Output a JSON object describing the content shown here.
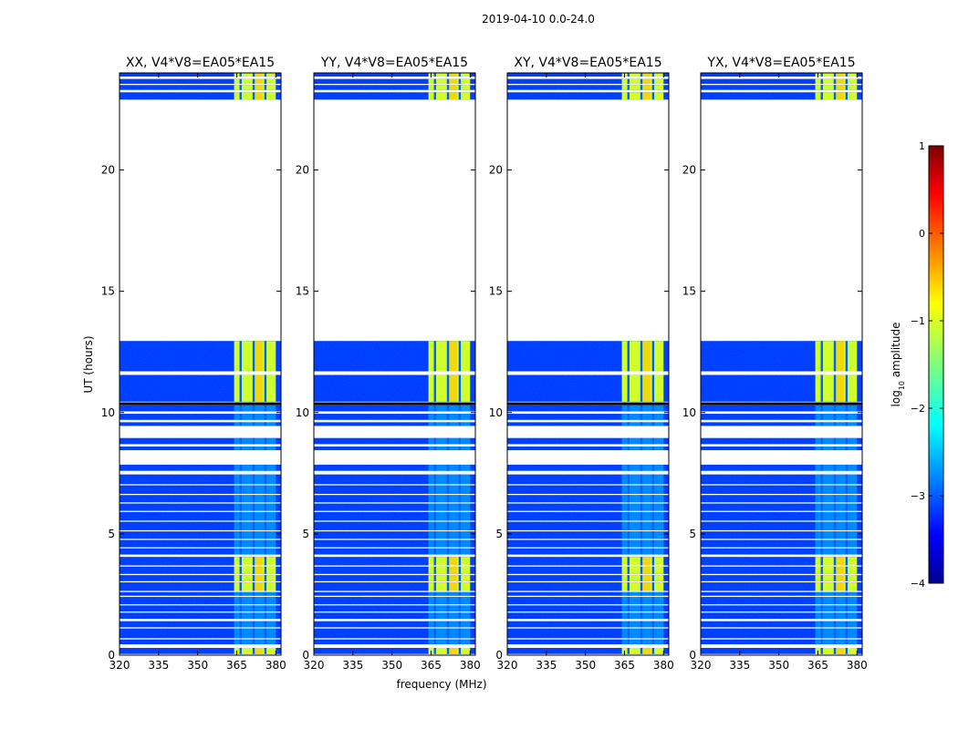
{
  "chart_data": {
    "type": "heatmap",
    "suptitle": "2019-04-10 0.0-24.0",
    "xlabel": "frequency (MHz)",
    "ylabel": "UT (hours)",
    "xlim": [
      320,
      382
    ],
    "ylim": [
      0,
      24
    ],
    "xticks": [
      320,
      335,
      350,
      365,
      380
    ],
    "yticks": [
      0,
      5,
      10,
      15,
      20
    ],
    "panels": [
      {
        "title": "XX, V4*V8=EA05*EA15"
      },
      {
        "title": "YY, V4*V8=EA05*EA15"
      },
      {
        "title": "XY, V4*V8=EA05*EA15"
      },
      {
        "title": "YX, V4*V8=EA05*EA15"
      }
    ],
    "data_ranges_hours": [
      [
        0.05,
        0.3
      ],
      [
        0.45,
        0.65
      ],
      [
        0.7,
        1.1
      ],
      [
        1.15,
        1.4
      ],
      [
        1.5,
        1.75
      ],
      [
        1.8,
        2.05
      ],
      [
        2.1,
        2.4
      ],
      [
        2.45,
        2.6
      ],
      [
        2.65,
        3.0
      ],
      [
        3.05,
        3.3
      ],
      [
        3.35,
        3.65
      ],
      [
        3.7,
        4.05
      ],
      [
        4.15,
        4.4
      ],
      [
        4.45,
        4.75
      ],
      [
        4.8,
        5.1
      ],
      [
        5.15,
        5.5
      ],
      [
        5.55,
        5.9
      ],
      [
        5.95,
        6.25
      ],
      [
        6.3,
        6.6
      ],
      [
        6.65,
        7.0
      ],
      [
        7.05,
        7.45
      ],
      [
        7.6,
        7.85
      ],
      [
        8.45,
        8.6
      ],
      [
        8.7,
        8.95
      ],
      [
        9.45,
        9.6
      ],
      [
        9.7,
        9.95
      ],
      [
        10.05,
        10.3
      ],
      [
        10.45,
        11.55
      ],
      [
        11.7,
        12.95
      ],
      [
        22.9,
        23.2
      ],
      [
        23.3,
        23.5
      ],
      [
        23.55,
        23.75
      ],
      [
        23.85,
        24.0
      ]
    ],
    "rfi_band_mhz": [
      364,
      380
    ],
    "rfi_channel_gaps_mhz": [
      366.5,
      371.5,
      376.0
    ],
    "colorbar": {
      "label": "log10 amplitude",
      "vmin": -4,
      "vmax": 1,
      "ticks": [
        1,
        0,
        -1,
        -2,
        -3,
        -4
      ],
      "tick_labels": [
        "1",
        "0",
        "−1",
        "−2",
        "−3",
        "−4"
      ],
      "colormap": "jet"
    }
  }
}
